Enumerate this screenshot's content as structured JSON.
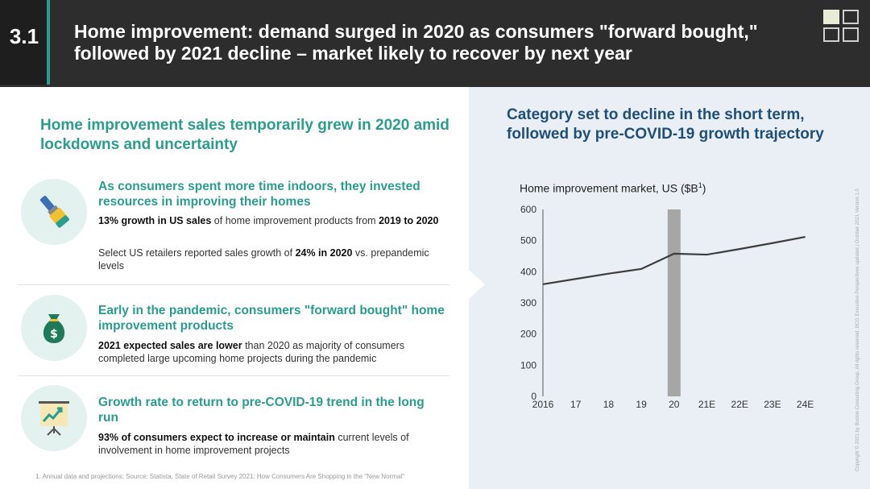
{
  "header": {
    "section_number": "3.1",
    "title": "Home improvement: demand surged in 2020 as consumers \"forward bought,\" followed by 2021 decline – market likely to recover by next year"
  },
  "left": {
    "title": "Home improvement sales temporarily grew in 2020 amid lockdowns and uncertainty",
    "items": [
      {
        "icon": "paintbrush-icon",
        "heading": "As consumers spent more time indoors, they invested resources in improving their homes",
        "p1_bold": "13% growth in US sales",
        "p1_mid": " of home improvement products from ",
        "p1_bold2": "2019 to 2020",
        "p2_pre": "Select US retailers reported sales growth of ",
        "p2_bold": "24% in 2020",
        "p2_post": " vs. prepandemic levels"
      },
      {
        "icon": "money-bag-icon",
        "heading": "Early in the pandemic, consumers \"forward bought\" home improvement products",
        "p1_bold": "2021 expected sales are lower",
        "p1_post": " than 2020 as majority of consumers completed large upcoming home projects during the pandemic"
      },
      {
        "icon": "growth-chart-icon",
        "heading": "Growth rate to return to pre-COVID-19 trend in the long run",
        "p1_bold": "93% of consumers expect to increase or maintain",
        "p1_post": " current levels of involvement in home improvement projects"
      }
    ]
  },
  "footnote": "1. Annual data and projections; Source: Statista, State of Retail Survey 2021: How Consumers Are Shopping in the \"New Normal\"",
  "side_note": "Copyright © 2021 by Boston Consulting Group. All rights reserved. BCG Executive Perspectives updated | October 2021 Version 1.0",
  "right": {
    "title": "Category set to decline in the short term, followed by pre-COVID-19 growth trajectory",
    "chart_label": "Home improvement market, US ($B",
    "chart_label_sup": "1",
    "chart_label_close": ")"
  },
  "chart_data": {
    "type": "line",
    "title": "Home improvement market, US ($B¹)",
    "categories": [
      "2016",
      "17",
      "18",
      "19",
      "20",
      "21E",
      "22E",
      "23E",
      "24E"
    ],
    "series": [
      {
        "values": [
          360,
          377,
          394,
          409,
          458,
          455,
          473,
          492,
          512
        ]
      }
    ],
    "highlight_category": "20",
    "ylim": [
      0,
      600
    ],
    "yticks": [
      0,
      100,
      200,
      300,
      400,
      500,
      600
    ],
    "grid": false,
    "colors": {
      "line": "#3d3d3d",
      "highlight": "#a6a6a6",
      "axis": "#8a8a8a"
    }
  },
  "colors": {
    "accent": "#2a9d8f",
    "header_bg": "#2d2d2d",
    "right_title": "#1f4e79",
    "right_bg": "#e9eff5"
  }
}
